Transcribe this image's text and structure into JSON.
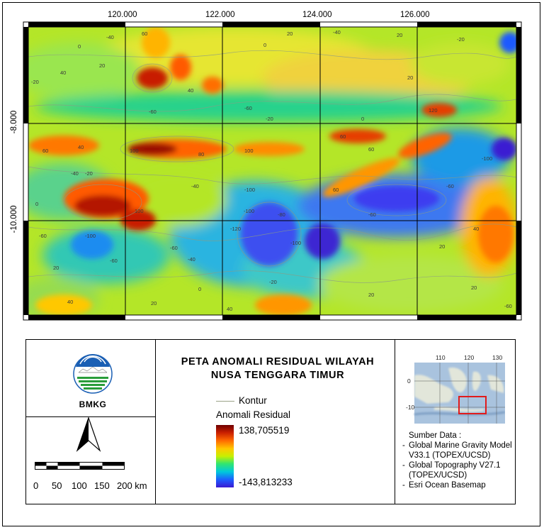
{
  "map": {
    "lon_ticks": [
      "120.000",
      "122.000",
      "124.000",
      "126.000"
    ],
    "lat_ticks": [
      "-8.000",
      "-10.000"
    ],
    "contour_labels": [
      "-40",
      "-20",
      "0",
      "20",
      "40",
      "60",
      "80",
      "100",
      "-60",
      "-80",
      "-100",
      "120",
      "-120"
    ]
  },
  "legend": {
    "title_line1": "PETA ANOMALI RESIDUAL WILAYAH",
    "title_line2": "NUSA TENGGARA TIMUR",
    "contour_label": "Kontur",
    "residual_title": "Anomali Residual",
    "max_value": "138,705519",
    "min_value": "-143,813233",
    "agency": "BMKG",
    "scale_labels": [
      "0",
      "50",
      "100",
      "150",
      "200 km"
    ],
    "inset_lon_ticks": [
      "110",
      "120",
      "130"
    ],
    "inset_lat_ticks": [
      "0",
      "-10"
    ],
    "source_title": "Sumber Data :",
    "sources": [
      "Global Marine Gravity Model V33.1 (TOPEX/UCSD)",
      "Global Topography V27.1 (TOPEX/UCSD)",
      "Esri Ocean Basemap"
    ]
  },
  "colors": {
    "max": "#6e0000",
    "high": "#ff6a00",
    "mid": "#c8f000",
    "low": "#00c8dc",
    "min": "#3a1ad2",
    "inset_box": "#e11b1b"
  }
}
